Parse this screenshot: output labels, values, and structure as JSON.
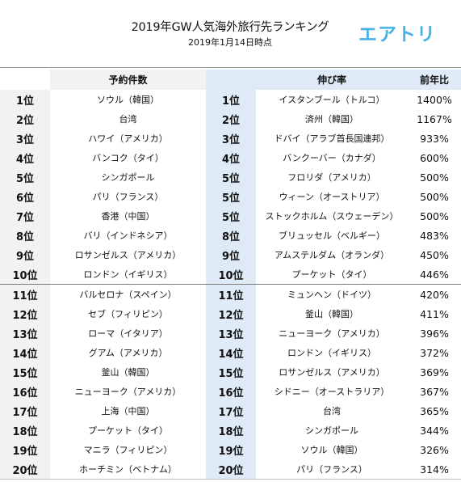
{
  "header": {
    "title": "2019年GW人気海外旅行先ランキング",
    "subtitle": "2019年1月14日時点",
    "logo": "エアトリ"
  },
  "table": {
    "columns": {
      "bookings": "予約件数",
      "growth": "伸び率",
      "yoy": "前年比"
    },
    "rows": [
      {
        "rank_a": "1位",
        "dest_a": "ソウル（韓国）",
        "rank_b": "1位",
        "dest_b": "イスタンブール（トルコ）",
        "ratio": "1400%"
      },
      {
        "rank_a": "2位",
        "dest_a": "台湾",
        "rank_b": "2位",
        "dest_b": "済州（韓国）",
        "ratio": "1167%"
      },
      {
        "rank_a": "3位",
        "dest_a": "ハワイ（アメリカ）",
        "rank_b": "3位",
        "dest_b": "ドバイ（アラブ首長国連邦）",
        "ratio": "933%"
      },
      {
        "rank_a": "4位",
        "dest_a": "バンコク（タイ）",
        "rank_b": "4位",
        "dest_b": "バンクーバー（カナダ）",
        "ratio": "600%"
      },
      {
        "rank_a": "5位",
        "dest_a": "シンガポール",
        "rank_b": "5位",
        "dest_b": "フロリダ（アメリカ）",
        "ratio": "500%"
      },
      {
        "rank_a": "6位",
        "dest_a": "パリ（フランス）",
        "rank_b": "5位",
        "dest_b": "ウィーン（オーストリア）",
        "ratio": "500%"
      },
      {
        "rank_a": "7位",
        "dest_a": "香港（中国）",
        "rank_b": "5位",
        "dest_b": "ストックホルム（スウェーデン）",
        "ratio": "500%"
      },
      {
        "rank_a": "8位",
        "dest_a": "バリ（インドネシア）",
        "rank_b": "8位",
        "dest_b": "ブリュッセル（ベルギー）",
        "ratio": "483%"
      },
      {
        "rank_a": "9位",
        "dest_a": "ロサンゼルス（アメリカ）",
        "rank_b": "9位",
        "dest_b": "アムステルダム（オランダ）",
        "ratio": "450%"
      },
      {
        "rank_a": "10位",
        "dest_a": "ロンドン（イギリス）",
        "rank_b": "10位",
        "dest_b": "プーケット（タイ）",
        "ratio": "446%"
      },
      {
        "rank_a": "11位",
        "dest_a": "バルセロナ（スペイン）",
        "rank_b": "11位",
        "dest_b": "ミュンヘン（ドイツ）",
        "ratio": "420%"
      },
      {
        "rank_a": "12位",
        "dest_a": "セブ（フィリピン）",
        "rank_b": "12位",
        "dest_b": "釜山（韓国）",
        "ratio": "411%"
      },
      {
        "rank_a": "13位",
        "dest_a": "ローマ（イタリア）",
        "rank_b": "13位",
        "dest_b": "ニューヨーク（アメリカ）",
        "ratio": "396%"
      },
      {
        "rank_a": "14位",
        "dest_a": "グアム（アメリカ）",
        "rank_b": "14位",
        "dest_b": "ロンドン（イギリス）",
        "ratio": "372%"
      },
      {
        "rank_a": "15位",
        "dest_a": "釜山（韓国）",
        "rank_b": "15位",
        "dest_b": "ロサンゼルス（アメリカ）",
        "ratio": "369%"
      },
      {
        "rank_a": "16位",
        "dest_a": "ニューヨーク（アメリカ）",
        "rank_b": "16位",
        "dest_b": "シドニー（オーストラリア）",
        "ratio": "367%"
      },
      {
        "rank_a": "17位",
        "dest_a": "上海（中国）",
        "rank_b": "17位",
        "dest_b": "台湾",
        "ratio": "365%"
      },
      {
        "rank_a": "18位",
        "dest_a": "プーケット（タイ）",
        "rank_b": "18位",
        "dest_b": "シンガポール",
        "ratio": "344%"
      },
      {
        "rank_a": "19位",
        "dest_a": "マニラ（フィリピン）",
        "rank_b": "19位",
        "dest_b": "ソウル（韓国）",
        "ratio": "326%"
      },
      {
        "rank_a": "20位",
        "dest_a": "ホーチミン（ベトナム）",
        "rank_b": "20位",
        "dest_b": "パリ（フランス）",
        "ratio": "314%"
      }
    ]
  }
}
